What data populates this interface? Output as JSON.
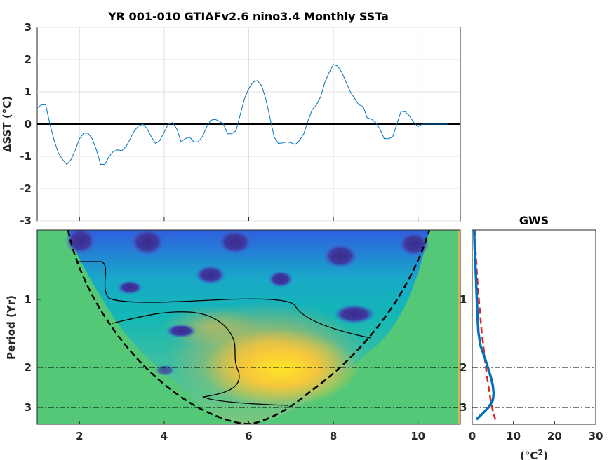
{
  "chart_data": [
    {
      "type": "line",
      "title": "YR 001-010 GTIAFv2.6 nino3.4 Monthly SSTa",
      "xlabel": "",
      "ylabel_prefix": "ΔSST (",
      "ylabel_unit": "°C",
      "ylabel_suffix": ")",
      "xlim": [
        1,
        11
      ],
      "ylim": [
        -3,
        3
      ],
      "xticks": [
        "2",
        "4",
        "6",
        "8",
        "10"
      ],
      "yticks": [
        "3",
        "2",
        "1",
        "0",
        "-1",
        "-2",
        "-3"
      ],
      "grid": true,
      "line_color": "#0072bd",
      "zero_line_color": "#000000",
      "x": [
        1.0,
        1.1,
        1.2,
        1.3,
        1.4,
        1.5,
        1.6,
        1.7,
        1.8,
        1.9,
        2.0,
        2.1,
        2.2,
        2.3,
        2.4,
        2.5,
        2.6,
        2.7,
        2.8,
        2.9,
        3.0,
        3.1,
        3.2,
        3.3,
        3.4,
        3.5,
        3.6,
        3.7,
        3.8,
        3.9,
        4.0,
        4.1,
        4.2,
        4.3,
        4.4,
        4.5,
        4.6,
        4.7,
        4.8,
        4.9,
        5.0,
        5.1,
        5.2,
        5.3,
        5.4,
        5.5,
        5.6,
        5.7,
        5.8,
        5.9,
        6.0,
        6.1,
        6.2,
        6.3,
        6.4,
        6.5,
        6.6,
        6.7,
        6.8,
        6.9,
        7.0,
        7.1,
        7.2,
        7.3,
        7.4,
        7.5,
        7.6,
        7.7,
        7.8,
        7.9,
        8.0,
        8.1,
        8.2,
        8.3,
        8.4,
        8.5,
        8.6,
        8.7,
        8.8,
        8.9,
        9.0,
        9.1,
        9.2,
        9.3,
        9.4,
        9.5,
        9.6,
        9.7,
        9.8,
        9.9,
        10.0,
        10.1,
        10.2,
        10.3,
        10.4,
        10.5,
        10.6,
        10.7,
        10.8,
        10.9,
        11.0
      ],
      "y": [
        0.5,
        0.6,
        0.6,
        0.0,
        -0.5,
        -0.9,
        -1.1,
        -1.25,
        -1.1,
        -0.8,
        -0.45,
        -0.28,
        -0.28,
        -0.45,
        -0.8,
        -1.25,
        -1.25,
        -1.0,
        -0.85,
        -0.8,
        -0.82,
        -0.7,
        -0.45,
        -0.2,
        -0.05,
        0.0,
        -0.15,
        -0.4,
        -0.6,
        -0.5,
        -0.25,
        0.0,
        0.05,
        -0.15,
        -0.55,
        -0.45,
        -0.4,
        -0.55,
        -0.55,
        -0.4,
        -0.1,
        0.12,
        0.15,
        0.1,
        0.0,
        -0.3,
        -0.3,
        -0.2,
        0.3,
        0.8,
        1.1,
        1.3,
        1.35,
        1.2,
        0.8,
        0.2,
        -0.4,
        -0.6,
        -0.58,
        -0.55,
        -0.58,
        -0.63,
        -0.5,
        -0.3,
        0.1,
        0.45,
        0.6,
        0.85,
        1.3,
        1.6,
        1.85,
        1.8,
        1.6,
        1.3,
        1.0,
        0.8,
        0.6,
        0.55,
        0.2,
        0.15,
        0.05,
        -0.15,
        -0.45,
        -0.45,
        -0.4,
        0.0,
        0.4,
        0.38,
        0.25,
        0.05,
        -0.08,
        0.0,
        0.0,
        0.0,
        0.0,
        0.0,
        0.0,
        0.0,
        0.0,
        0.0,
        0.0
      ]
    },
    {
      "type": "heatmap",
      "title": "",
      "xlabel": "",
      "ylabel": "Period (Yr)",
      "xlim": [
        1,
        11
      ],
      "xticks": [
        "2",
        "4",
        "6",
        "8",
        "10"
      ],
      "yticks": [
        "1",
        "2",
        "3"
      ],
      "colormap": "parula",
      "coi_style": "dashed",
      "reference_periods": [
        2,
        3
      ]
    },
    {
      "type": "line",
      "title": "GWS",
      "xlabel_unit": "°C",
      "xlabel_exp": "2",
      "xlim": [
        0,
        30
      ],
      "xticks": [
        "0",
        "10",
        "20",
        "30"
      ],
      "yticks": [
        "1",
        "2",
        "3"
      ],
      "series": [
        {
          "color": "#0072bd",
          "periods": [
            0.4,
            0.6,
            0.8,
            1.0,
            1.2,
            1.4,
            1.6,
            1.8,
            2.0,
            2.2,
            2.4,
            2.6,
            2.8,
            3.0,
            3.2,
            3.4
          ],
          "power": [
            0.3,
            0.6,
            0.9,
            1.1,
            1.3,
            1.5,
            2.0,
            3.0,
            3.8,
            4.5,
            5.0,
            5.2,
            5.0,
            4.0,
            2.5,
            1.0
          ]
        },
        {
          "color": "#e32222",
          "style": "dashed",
          "periods": [
            0.4,
            0.6,
            0.8,
            1.0,
            1.2,
            1.4,
            1.6,
            1.8,
            2.0,
            2.2,
            2.4,
            2.6,
            2.8,
            3.0,
            3.2,
            3.4
          ],
          "power": [
            0.5,
            0.8,
            1.2,
            1.6,
            2.0,
            2.3,
            2.7,
            3.0,
            3.3,
            3.6,
            3.9,
            4.2,
            4.5,
            4.8,
            5.2,
            5.6
          ]
        }
      ]
    }
  ]
}
